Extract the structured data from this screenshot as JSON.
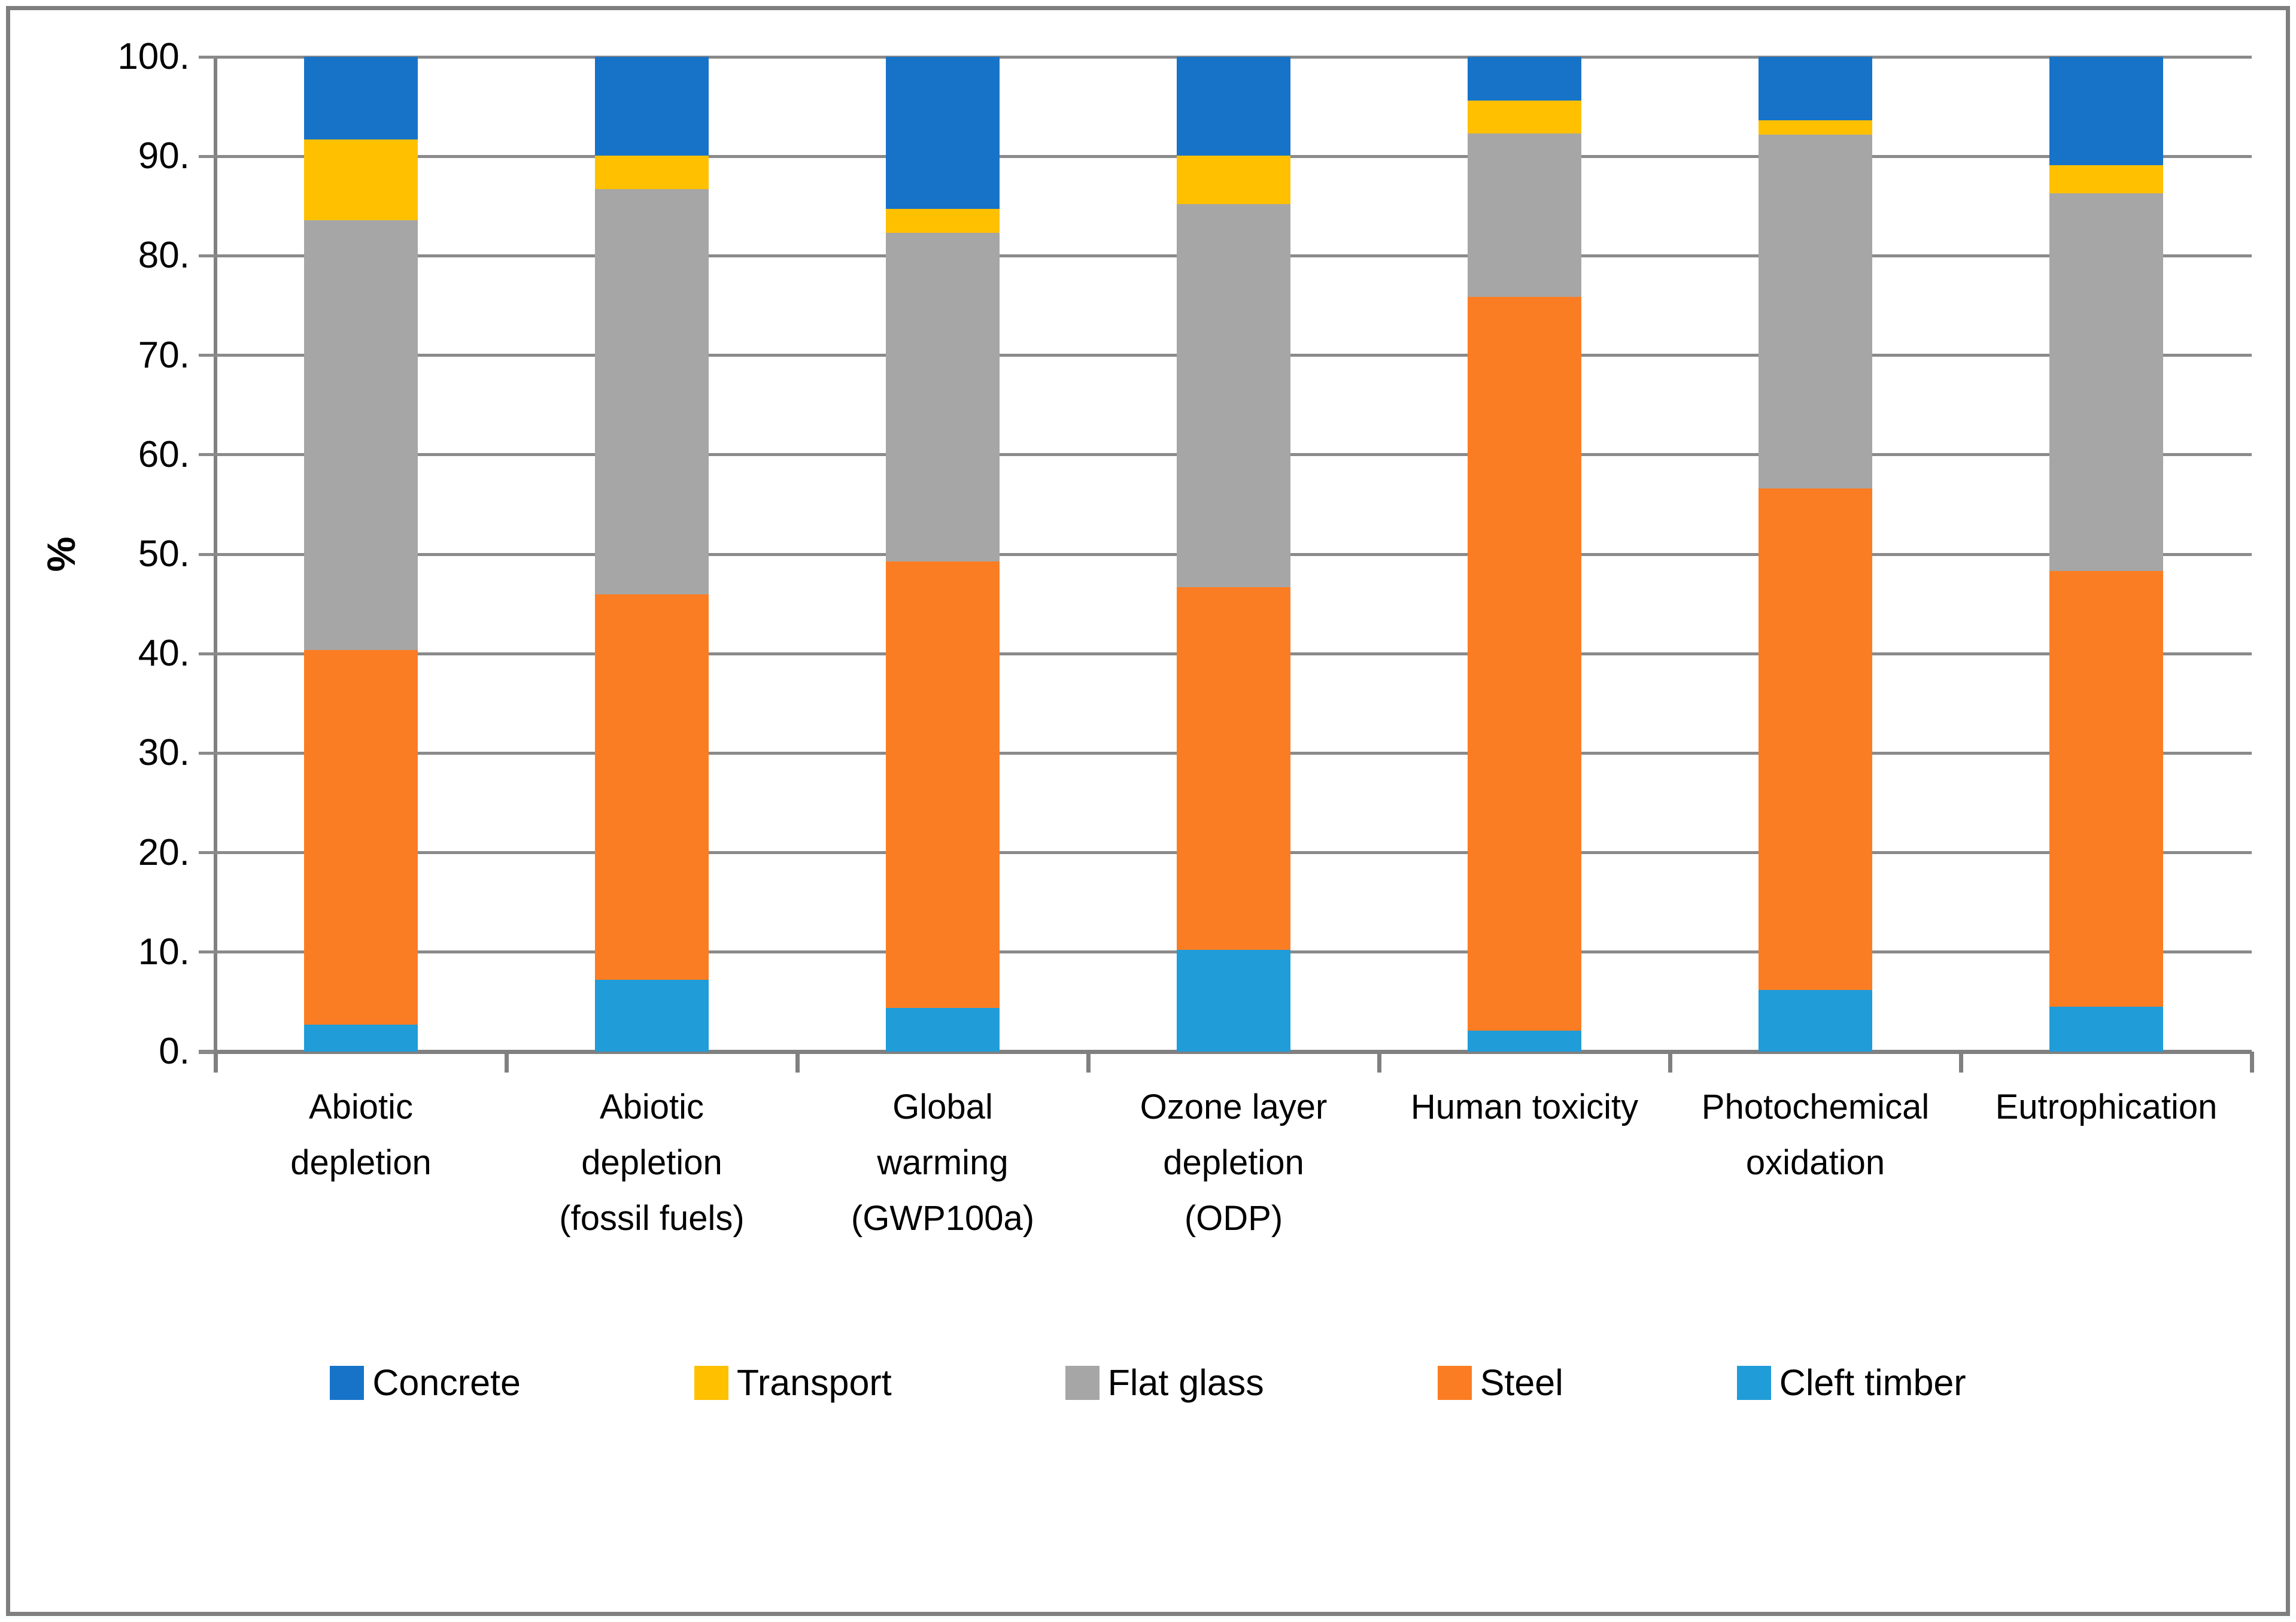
{
  "chart_data": {
    "type": "bar",
    "stacked": true,
    "stack_order": "bottom-to-top",
    "title": "",
    "ylabel": "%",
    "ylim": [
      0,
      100
    ],
    "y_tick_step": 10,
    "grid": true,
    "y_tick_labels": [
      "100.",
      "90.",
      "80.",
      "70.",
      "60.",
      "50.",
      "40.",
      "30.",
      "20.",
      "10.",
      "0."
    ],
    "categories": [
      "Abiotic depletion",
      "Abiotic depletion (fossil fuels)",
      "Global warming (GWP100a)",
      "Ozone layer depletion (ODP)",
      "Human toxicity",
      "Photochemical oxidation",
      "Eutrophication"
    ],
    "category_label_lines": [
      [
        "Abiotic",
        "depletion"
      ],
      [
        "Abiotic",
        "depletion",
        "(fossil fuels)"
      ],
      [
        "Global",
        "warming",
        "(GWP100a)"
      ],
      [
        "Ozone layer",
        "depletion",
        "(ODP)"
      ],
      [
        "Human toxicity"
      ],
      [
        "Photochemical",
        "oxidation"
      ],
      [
        "Eutrophication"
      ]
    ],
    "series": [
      {
        "name": "Cleft timber",
        "color": "#209CD8",
        "values": [
          2.7,
          7.2,
          4.4,
          10.2,
          2.1,
          6.2,
          4.5
        ]
      },
      {
        "name": "Steel",
        "color": "#FB7D23",
        "values": [
          37.7,
          38.8,
          44.9,
          36.5,
          73.8,
          50.4,
          43.8
        ]
      },
      {
        "name": "Flat glass",
        "color": "#A6A6A6",
        "values": [
          43.2,
          40.7,
          33.0,
          38.5,
          16.4,
          35.6,
          38.0
        ]
      },
      {
        "name": "Transport",
        "color": "#FFC000",
        "values": [
          8.1,
          3.4,
          2.4,
          4.9,
          3.3,
          1.4,
          2.8
        ]
      },
      {
        "name": "Concrete",
        "color": "#1773C8",
        "values": [
          8.3,
          9.9,
          15.3,
          9.9,
          4.4,
          6.4,
          10.9
        ]
      }
    ],
    "legend": {
      "position": "bottom",
      "items": [
        "Concrete",
        "Transport",
        "Flat glass",
        "Steel",
        "Cleft timber"
      ]
    }
  },
  "colors": {
    "gridline": "#8A8A8A",
    "axis": "#808080",
    "frame_border": "#7F7F7F",
    "text": "#000000",
    "background": "#FFFFFF"
  }
}
